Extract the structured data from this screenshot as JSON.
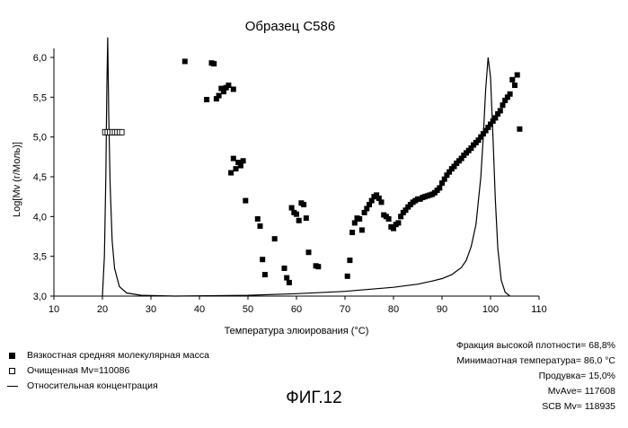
{
  "chart_data": {
    "type": "scatter",
    "title": "Образец С586",
    "xlabel": "Температура элюирования (°C)",
    "ylabel": "Log[Mv (г/Моль)]",
    "xlim": [
      10,
      110
    ],
    "ylim": [
      3.0,
      6.0
    ],
    "x_ticks": [
      10,
      20,
      30,
      40,
      50,
      60,
      70,
      80,
      90,
      100,
      110
    ],
    "y_ticks": [
      3.0,
      3.5,
      4.0,
      4.5,
      5.0,
      5.5,
      6.0
    ],
    "x_tick_labels": [
      "10",
      "20",
      "30",
      "40",
      "50",
      "60",
      "70",
      "80",
      "90",
      "100",
      "110"
    ],
    "y_tick_labels": [
      "3,0",
      "3,5",
      "4,0",
      "4,5",
      "5,0",
      "5,5",
      "6,0"
    ],
    "series": [
      {
        "name": "Вязкостная средняя молекулярная масса",
        "kind": "filled-square",
        "points": [
          [
            37,
            5.95
          ],
          [
            41.5,
            5.47
          ],
          [
            42.5,
            5.93
          ],
          [
            43,
            5.92
          ],
          [
            43.5,
            5.48
          ],
          [
            44,
            5.52
          ],
          [
            44.5,
            5.61
          ],
          [
            45,
            5.57
          ],
          [
            45.5,
            5.62
          ],
          [
            46,
            5.65
          ],
          [
            47,
            5.6
          ],
          [
            46.5,
            4.55
          ],
          [
            47,
            4.73
          ],
          [
            47.5,
            4.6
          ],
          [
            48,
            4.68
          ],
          [
            48.5,
            4.64
          ],
          [
            49,
            4.7
          ],
          [
            49.5,
            4.2
          ],
          [
            52,
            3.97
          ],
          [
            52.5,
            3.88
          ],
          [
            53,
            3.46
          ],
          [
            53.5,
            3.27
          ],
          [
            55.5,
            3.72
          ],
          [
            57.5,
            3.35
          ],
          [
            58,
            3.23
          ],
          [
            58.5,
            3.17
          ],
          [
            59,
            4.11
          ],
          [
            59.5,
            4.05
          ],
          [
            60,
            4.03
          ],
          [
            60.5,
            3.95
          ],
          [
            61,
            4.17
          ],
          [
            61.5,
            4.15
          ],
          [
            62,
            3.98
          ],
          [
            62.5,
            3.55
          ],
          [
            64,
            3.38
          ],
          [
            64.5,
            3.37
          ],
          [
            70.5,
            3.25
          ],
          [
            71,
            3.45
          ],
          [
            71.5,
            3.8
          ],
          [
            72,
            3.92
          ],
          [
            72.5,
            3.98
          ],
          [
            73,
            3.97
          ],
          [
            73.5,
            3.83
          ],
          [
            74,
            4.05
          ],
          [
            74.5,
            4.1
          ],
          [
            75,
            4.15
          ],
          [
            75.5,
            4.2
          ],
          [
            76,
            4.25
          ],
          [
            76.5,
            4.27
          ],
          [
            77,
            4.23
          ],
          [
            77.5,
            4.18
          ],
          [
            78,
            4.02
          ],
          [
            78.5,
            4.0
          ],
          [
            79,
            3.97
          ],
          [
            79.5,
            3.87
          ],
          [
            80,
            3.85
          ],
          [
            80.5,
            3.9
          ],
          [
            81,
            3.92
          ],
          [
            81.5,
            4.0
          ],
          [
            82,
            4.05
          ],
          [
            82.5,
            4.08
          ],
          [
            83,
            4.12
          ],
          [
            83.5,
            4.15
          ],
          [
            84,
            4.18
          ],
          [
            84.5,
            4.2
          ],
          [
            85,
            4.22
          ],
          [
            85.5,
            4.22
          ],
          [
            86,
            4.24
          ],
          [
            86.5,
            4.25
          ],
          [
            87,
            4.26
          ],
          [
            87.5,
            4.27
          ],
          [
            88,
            4.28
          ],
          [
            88.5,
            4.3
          ],
          [
            89,
            4.33
          ],
          [
            89.5,
            4.36
          ],
          [
            90,
            4.42
          ],
          [
            90.5,
            4.47
          ],
          [
            91,
            4.52
          ],
          [
            91.5,
            4.56
          ],
          [
            92,
            4.6
          ],
          [
            92.5,
            4.63
          ],
          [
            93,
            4.67
          ],
          [
            93.5,
            4.7
          ],
          [
            94,
            4.73
          ],
          [
            94.5,
            4.77
          ],
          [
            95,
            4.8
          ],
          [
            95.5,
            4.83
          ],
          [
            96,
            4.86
          ],
          [
            96.5,
            4.9
          ],
          [
            97,
            4.93
          ],
          [
            97.5,
            4.96
          ],
          [
            98,
            5.0
          ],
          [
            98.5,
            5.04
          ],
          [
            99,
            5.08
          ],
          [
            99.5,
            5.12
          ],
          [
            100,
            5.16
          ],
          [
            100.5,
            5.2
          ],
          [
            101,
            5.24
          ],
          [
            101.5,
            5.29
          ],
          [
            102,
            5.33
          ],
          [
            102.5,
            5.4
          ],
          [
            103,
            5.46
          ],
          [
            103.5,
            5.5
          ],
          [
            104,
            5.54
          ],
          [
            104.5,
            5.72
          ],
          [
            105,
            5.65
          ],
          [
            105.5,
            5.78
          ],
          [
            106,
            5.1
          ]
        ]
      },
      {
        "name": "Очищенная Mv=110086",
        "kind": "open-square",
        "points": [
          [
            20.5,
            5.06
          ],
          [
            21,
            5.06
          ],
          [
            21.5,
            5.06
          ],
          [
            22,
            5.06
          ],
          [
            22.5,
            5.06
          ],
          [
            23,
            5.06
          ],
          [
            23.5,
            5.06
          ],
          [
            24,
            5.06
          ]
        ]
      },
      {
        "name": "Относительная концентрация",
        "kind": "line",
        "points": [
          [
            20.0,
            3.0
          ],
          [
            20.4,
            3.5
          ],
          [
            20.7,
            4.5
          ],
          [
            20.9,
            5.6
          ],
          [
            21.1,
            6.25
          ],
          [
            21.3,
            5.3
          ],
          [
            21.6,
            4.4
          ],
          [
            22,
            3.7
          ],
          [
            22.5,
            3.35
          ],
          [
            23.5,
            3.12
          ],
          [
            25,
            3.04
          ],
          [
            28,
            3.01
          ],
          [
            35,
            3.0
          ],
          [
            50,
            3.01
          ],
          [
            60,
            3.03
          ],
          [
            70,
            3.06
          ],
          [
            80,
            3.11
          ],
          [
            85,
            3.15
          ],
          [
            88,
            3.19
          ],
          [
            90,
            3.22
          ],
          [
            92,
            3.27
          ],
          [
            94,
            3.36
          ],
          [
            95,
            3.45
          ],
          [
            96,
            3.62
          ],
          [
            97,
            3.9
          ],
          [
            98,
            4.5
          ],
          [
            98.5,
            5.0
          ],
          [
            99,
            5.6
          ],
          [
            99.5,
            6.0
          ],
          [
            100,
            5.75
          ],
          [
            100.5,
            5.0
          ],
          [
            101,
            4.2
          ],
          [
            101.5,
            3.6
          ],
          [
            102.2,
            3.2
          ],
          [
            103,
            3.05
          ],
          [
            104,
            3.0
          ]
        ]
      }
    ]
  },
  "legend": {
    "viscosity": "Вязкостная средняя молекулярная масса",
    "purified": "Очищенная Mv=110086",
    "concentration": "Относительная концентрация"
  },
  "stats": {
    "high_density_fraction": "Фракция высокой плотности= 68,8%",
    "min_temperature": "Минимаотная температура= 86,0 °C",
    "purge": "Продувка= 15,0%",
    "mv_ave": "MvAve= 117608",
    "scb_mv": "SCB Mv= 118935"
  },
  "figure_label": "ФИГ.12"
}
